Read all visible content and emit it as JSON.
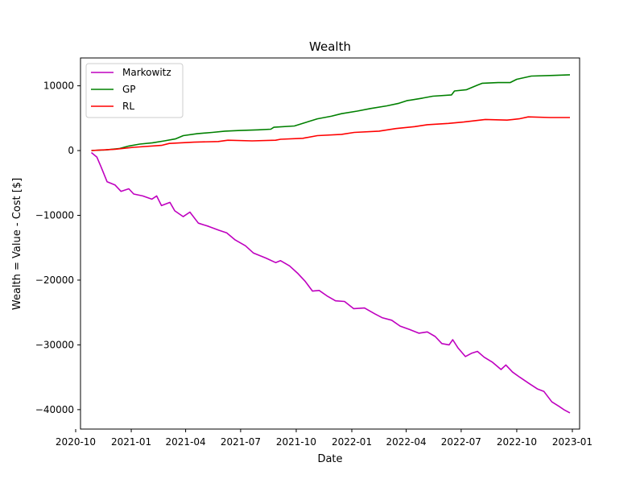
{
  "chart_data": {
    "type": "line",
    "title": "Wealth",
    "xlabel": "Date",
    "ylabel": "Wealth = Value - Cost [$]",
    "xlim": [
      "2020-10-09",
      "2023-01-13"
    ],
    "ylim": [
      -43000,
      14300
    ],
    "grid": false,
    "legend_position": "top-left",
    "x_ticks": [
      "2020-10",
      "2021-01",
      "2021-04",
      "2021-07",
      "2021-10",
      "2022-01",
      "2022-04",
      "2022-07",
      "2022-10",
      "2023-01"
    ],
    "y_ticks": [
      10000,
      0,
      -10000,
      -20000,
      -30000,
      -40000
    ],
    "y_tick_labels": [
      "10000",
      "0",
      "−10000",
      "−20000",
      "−30000",
      "−40000"
    ],
    "series": [
      {
        "name": "Markowitz",
        "color": "#bf00bf",
        "points": [
          [
            "2020-10-27",
            -300
          ],
          [
            "2020-11-05",
            -1000
          ],
          [
            "2020-11-12",
            -2500
          ],
          [
            "2020-11-22",
            -4800
          ],
          [
            "2020-12-05",
            -5300
          ],
          [
            "2020-12-15",
            -6300
          ],
          [
            "2020-12-28",
            -5900
          ],
          [
            "2021-01-05",
            -6700
          ],
          [
            "2021-01-20",
            -7000
          ],
          [
            "2021-02-04",
            -7500
          ],
          [
            "2021-02-12",
            -7000
          ],
          [
            "2021-02-20",
            -8500
          ],
          [
            "2021-03-06",
            -8000
          ],
          [
            "2021-03-14",
            -9300
          ],
          [
            "2021-03-28",
            -10200
          ],
          [
            "2021-04-08",
            -9500
          ],
          [
            "2021-04-22",
            -11200
          ],
          [
            "2021-05-09",
            -11700
          ],
          [
            "2021-05-26",
            -12300
          ],
          [
            "2021-06-08",
            -12700
          ],
          [
            "2021-06-22",
            -13800
          ],
          [
            "2021-07-09",
            -14700
          ],
          [
            "2021-07-22",
            -15800
          ],
          [
            "2021-08-12",
            -16600
          ],
          [
            "2021-08-28",
            -17300
          ],
          [
            "2021-09-05",
            -17000
          ],
          [
            "2021-09-20",
            -17800
          ],
          [
            "2021-10-04",
            -19000
          ],
          [
            "2021-10-16",
            -20200
          ],
          [
            "2021-10-28",
            -21700
          ],
          [
            "2021-11-08",
            -21600
          ],
          [
            "2021-11-22",
            -22500
          ],
          [
            "2021-12-05",
            -23200
          ],
          [
            "2021-12-20",
            -23300
          ],
          [
            "2022-01-04",
            -24400
          ],
          [
            "2022-01-22",
            -24300
          ],
          [
            "2022-02-08",
            -25200
          ],
          [
            "2022-02-20",
            -25800
          ],
          [
            "2022-03-08",
            -26200
          ],
          [
            "2022-03-22",
            -27100
          ],
          [
            "2022-04-06",
            -27600
          ],
          [
            "2022-04-22",
            -28200
          ],
          [
            "2022-05-06",
            -28000
          ],
          [
            "2022-05-19",
            -28700
          ],
          [
            "2022-05-30",
            -29800
          ],
          [
            "2022-06-11",
            -30000
          ],
          [
            "2022-06-17",
            -29200
          ],
          [
            "2022-06-26",
            -30500
          ],
          [
            "2022-07-08",
            -31800
          ],
          [
            "2022-07-18",
            -31300
          ],
          [
            "2022-07-28",
            -31000
          ],
          [
            "2022-08-08",
            -31900
          ],
          [
            "2022-08-22",
            -32700
          ],
          [
            "2022-09-05",
            -33800
          ],
          [
            "2022-09-13",
            -33100
          ],
          [
            "2022-09-24",
            -34200
          ],
          [
            "2022-10-06",
            -35000
          ],
          [
            "2022-10-22",
            -36000
          ],
          [
            "2022-11-04",
            -36800
          ],
          [
            "2022-11-15",
            -37200
          ],
          [
            "2022-11-28",
            -38800
          ],
          [
            "2022-12-10",
            -39500
          ],
          [
            "2022-12-18",
            -40000
          ],
          [
            "2022-12-28",
            -40500
          ]
        ]
      },
      {
        "name": "GP",
        "color": "#008000",
        "points": [
          [
            "2020-10-27",
            0
          ],
          [
            "2020-11-20",
            100
          ],
          [
            "2020-12-12",
            300
          ],
          [
            "2020-12-28",
            700
          ],
          [
            "2021-01-15",
            1000
          ],
          [
            "2021-02-05",
            1200
          ],
          [
            "2021-02-25",
            1500
          ],
          [
            "2021-03-15",
            1800
          ],
          [
            "2021-03-28",
            2300
          ],
          [
            "2021-04-20",
            2600
          ],
          [
            "2021-05-15",
            2800
          ],
          [
            "2021-06-05",
            3000
          ],
          [
            "2021-06-30",
            3100
          ],
          [
            "2021-07-30",
            3200
          ],
          [
            "2021-08-20",
            3300
          ],
          [
            "2021-08-25",
            3600
          ],
          [
            "2021-09-28",
            3800
          ],
          [
            "2021-10-15",
            4300
          ],
          [
            "2021-11-05",
            4900
          ],
          [
            "2021-11-28",
            5300
          ],
          [
            "2021-12-15",
            5700
          ],
          [
            "2022-01-10",
            6100
          ],
          [
            "2022-02-01",
            6500
          ],
          [
            "2022-02-28",
            6900
          ],
          [
            "2022-03-20",
            7300
          ],
          [
            "2022-04-02",
            7700
          ],
          [
            "2022-04-28",
            8100
          ],
          [
            "2022-05-15",
            8400
          ],
          [
            "2022-06-15",
            8600
          ],
          [
            "2022-06-20",
            9200
          ],
          [
            "2022-07-10",
            9400
          ],
          [
            "2022-07-28",
            10100
          ],
          [
            "2022-08-05",
            10400
          ],
          [
            "2022-08-31",
            10500
          ],
          [
            "2022-09-20",
            10500
          ],
          [
            "2022-10-01",
            11000
          ],
          [
            "2022-10-25",
            11500
          ],
          [
            "2022-11-30",
            11600
          ],
          [
            "2022-12-28",
            11700
          ]
        ]
      },
      {
        "name": "RL",
        "color": "#ff0000",
        "points": [
          [
            "2020-10-27",
            0
          ],
          [
            "2020-12-05",
            200
          ],
          [
            "2021-01-05",
            500
          ],
          [
            "2021-02-20",
            800
          ],
          [
            "2021-03-05",
            1100
          ],
          [
            "2021-04-15",
            1300
          ],
          [
            "2021-05-25",
            1400
          ],
          [
            "2021-06-10",
            1600
          ],
          [
            "2021-07-20",
            1500
          ],
          [
            "2021-08-28",
            1600
          ],
          [
            "2021-09-05",
            1750
          ],
          [
            "2021-10-12",
            1900
          ],
          [
            "2021-11-05",
            2300
          ],
          [
            "2021-12-15",
            2500
          ],
          [
            "2022-01-05",
            2800
          ],
          [
            "2022-02-15",
            3000
          ],
          [
            "2022-03-15",
            3400
          ],
          [
            "2022-04-15",
            3700
          ],
          [
            "2022-05-06",
            4000
          ],
          [
            "2022-06-10",
            4200
          ],
          [
            "2022-07-05",
            4400
          ],
          [
            "2022-08-10",
            4800
          ],
          [
            "2022-09-15",
            4700
          ],
          [
            "2022-10-05",
            4900
          ],
          [
            "2022-10-20",
            5200
          ],
          [
            "2022-11-25",
            5100
          ],
          [
            "2022-12-28",
            5100
          ]
        ]
      }
    ]
  }
}
